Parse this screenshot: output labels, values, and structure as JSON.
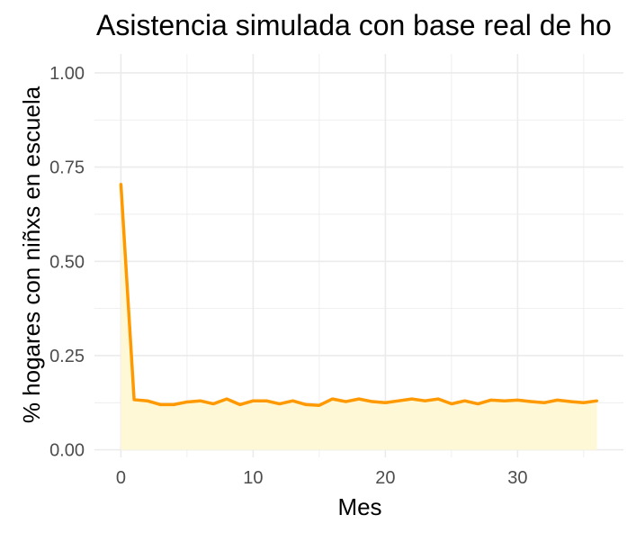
{
  "chart_data": {
    "type": "area",
    "title": "Asistencia simulada con base real de ho",
    "xlabel": "Mes",
    "ylabel": "% hogares con niñxs en escuela",
    "xlim": [
      -2,
      38
    ],
    "ylim": [
      -0.02,
      1.05
    ],
    "x_ticks": [
      0,
      10,
      20,
      30
    ],
    "x_tick_labels": [
      "0",
      "10",
      "20",
      "30"
    ],
    "y_ticks": [
      0,
      0.25,
      0.5,
      0.75,
      1.0
    ],
    "y_tick_labels": [
      "0.00",
      "0.25",
      "0.50",
      "0.75",
      "1.00"
    ],
    "grid": true,
    "colors": {
      "line": "#ff9900",
      "fill": "#fff8d6",
      "grid": "#ebebeb"
    },
    "x": [
      0,
      1,
      2,
      3,
      4,
      5,
      6,
      7,
      8,
      9,
      10,
      11,
      12,
      13,
      14,
      15,
      16,
      17,
      18,
      19,
      20,
      21,
      22,
      23,
      24,
      25,
      26,
      27,
      28,
      29,
      30,
      31,
      32,
      33,
      34,
      35,
      36
    ],
    "y": [
      0.705,
      0.133,
      0.13,
      0.12,
      0.12,
      0.127,
      0.13,
      0.122,
      0.135,
      0.12,
      0.13,
      0.13,
      0.122,
      0.13,
      0.12,
      0.118,
      0.135,
      0.128,
      0.135,
      0.128,
      0.125,
      0.13,
      0.135,
      0.13,
      0.135,
      0.122,
      0.13,
      0.122,
      0.132,
      0.13,
      0.132,
      0.128,
      0.125,
      0.132,
      0.128,
      0.125,
      0.13
    ]
  }
}
